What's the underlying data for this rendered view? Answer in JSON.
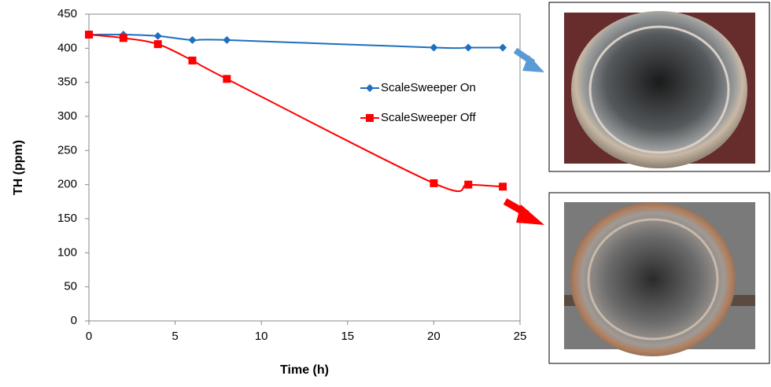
{
  "chart_data": {
    "type": "line",
    "x_label": "Time (h)",
    "y_label": "TH (ppm)",
    "xlim": [
      0,
      25
    ],
    "xticks": [
      0,
      5,
      10,
      15,
      20,
      25
    ],
    "ylim": [
      0,
      450
    ],
    "yticks": [
      0,
      50,
      100,
      150,
      200,
      250,
      300,
      350,
      400,
      450
    ],
    "grid": false,
    "series": [
      {
        "name": "ScaleSweeper On",
        "color": "#1f6fbf",
        "marker": "diamond",
        "x": [
          0,
          2,
          4,
          6,
          8,
          20,
          22,
          24
        ],
        "values": [
          420,
          420,
          418,
          412,
          412,
          401,
          401,
          401
        ]
      },
      {
        "name": "ScaleSweeper Off",
        "color": "#ff0000",
        "marker": "square",
        "x": [
          0,
          2,
          4,
          6,
          8,
          20,
          22,
          24
        ],
        "values": [
          420,
          415,
          406,
          382,
          355,
          202,
          200,
          197
        ]
      }
    ]
  }
}
